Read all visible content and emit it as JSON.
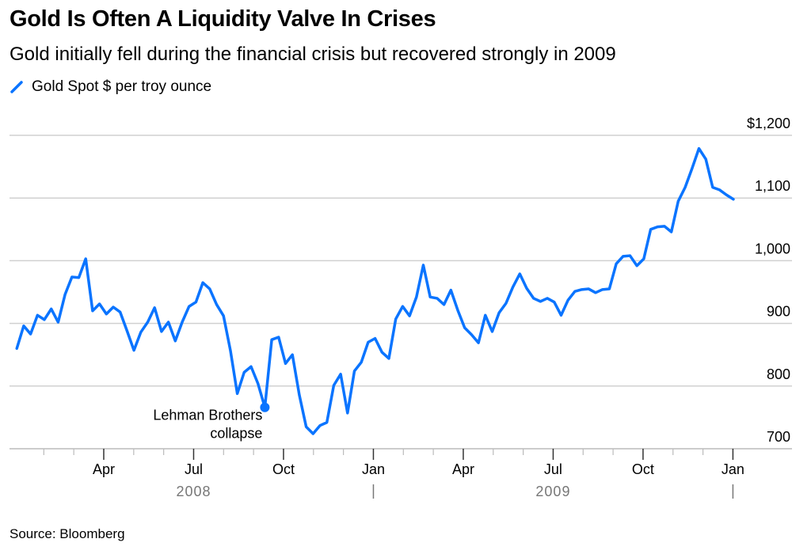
{
  "chart_data": {
    "type": "line",
    "title": "Gold Is Often A Liquidity Valve In Crises",
    "subtitle": "Gold initially fell during the financial crisis but recovered strongly in 2009",
    "source": "Source: Bloomberg",
    "series": [
      {
        "name": "Gold Spot $ per troy ounce",
        "color": "#0a74ff",
        "x_start": "2008-01-04",
        "x_step": "1 week",
        "values": [
          860,
          896,
          883,
          913,
          906,
          923,
          902,
          946,
          974,
          973,
          1003,
          920,
          931,
          915,
          926,
          918,
          888,
          857,
          886,
          902,
          925,
          887,
          902,
          872,
          902,
          927,
          934,
          965,
          955,
          930,
          912,
          857,
          788,
          822,
          831,
          804,
          766,
          874,
          878,
          836,
          850,
          786,
          735,
          724,
          737,
          742,
          801,
          819,
          757,
          824,
          838,
          870,
          876,
          854,
          844,
          907,
          927,
          912,
          942,
          993,
          942,
          940,
          930,
          953,
          921,
          893,
          882,
          869,
          913,
          887,
          917,
          932,
          958,
          979,
          956,
          940,
          935,
          940,
          934,
          913,
          937,
          951,
          954,
          955,
          949,
          954,
          955,
          995,
          1007,
          1008,
          992,
          1003,
          1050,
          1054,
          1055,
          1046,
          1095,
          1117,
          1147,
          1179,
          1162,
          1117,
          1113,
          1105,
          1098
        ]
      }
    ],
    "ylim": [
      700,
      1200
    ],
    "yticks": [
      {
        "value": 1200,
        "label": "$1,200"
      },
      {
        "value": 1100,
        "label": "1,100"
      },
      {
        "value": 1000,
        "label": "1,000"
      },
      {
        "value": 900,
        "label": "900"
      },
      {
        "value": 800,
        "label": "800"
      },
      {
        "value": 700,
        "label": "700"
      }
    ],
    "xlim_months_since_2008_01": [
      0,
      24.3
    ],
    "xticks": [
      {
        "month": 3,
        "label": "Apr"
      },
      {
        "month": 6,
        "label": "Jul"
      },
      {
        "month": 9,
        "label": "Oct"
      },
      {
        "month": 12,
        "label": "Jan"
      },
      {
        "month": 15,
        "label": "Apr"
      },
      {
        "month": 18,
        "label": "Jul"
      },
      {
        "month": 21,
        "label": "Oct"
      },
      {
        "month": 24,
        "label": "Jan"
      }
    ],
    "year_labels": [
      {
        "month": 6,
        "label": "2008"
      },
      {
        "month": 18,
        "label": "2009"
      }
    ],
    "year_separators": [
      12,
      24
    ],
    "annotation": {
      "index": 36,
      "line1": "Lehman Brothers",
      "line2": "collapse"
    },
    "grid": true,
    "legend": "top-left"
  }
}
